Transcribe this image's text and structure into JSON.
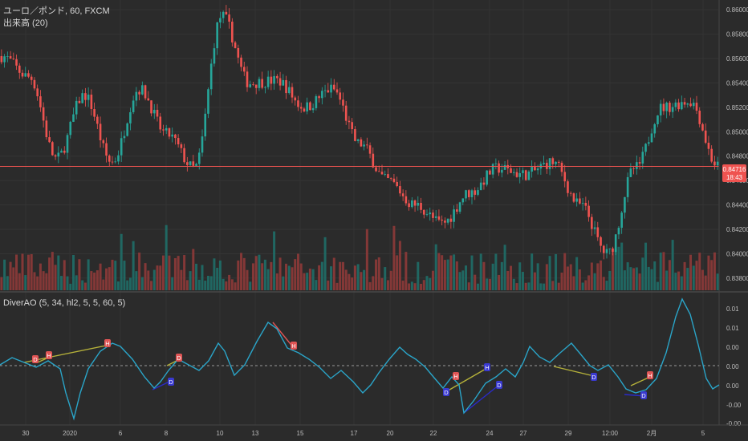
{
  "main_pane": {
    "symbol_line": "ユーロ／ポンド, 60, FXCM",
    "volume_line": "出来高 (20)",
    "price_labels": [
      "0.86000",
      "0.85800",
      "0.85600",
      "0.85400",
      "0.85200",
      "0.85000",
      "0.84800",
      "0.84600",
      "0.84400",
      "0.84200",
      "0.84000",
      "0.83800"
    ],
    "current_price": "0.84716",
    "countdown": "18:43",
    "ylim": [
      0.837,
      0.8608
    ],
    "colors": {
      "bg": "#2b2b2b",
      "up": "#26a69a",
      "down": "#ef5350",
      "price_line": "#ef5350",
      "volume_up": "#1f6e68",
      "volume_down": "#8e3a38"
    }
  },
  "indicator_pane": {
    "title": "DiverAO (5, 34, hl2, 5, 5, 60, 5)",
    "axis_labels": [
      "0.01",
      "0.01",
      "0.00",
      "0.00",
      "0.00",
      "-0.00",
      "-0.00",
      "-0.01"
    ],
    "zero_line_color": "#9a9a9a",
    "oscillator_color": "#2aa5c9",
    "markers": [
      {
        "label": "D",
        "kind": "bear"
      },
      {
        "label": "H",
        "kind": "bear"
      },
      {
        "label": "H",
        "kind": "bear"
      },
      {
        "label": "D",
        "kind": "bull"
      },
      {
        "label": "D",
        "kind": "bear"
      },
      {
        "label": "H",
        "kind": "bear"
      },
      {
        "label": "D",
        "kind": "bull"
      },
      {
        "label": "H",
        "kind": "bear"
      },
      {
        "label": "D",
        "kind": "bull"
      },
      {
        "label": "H",
        "kind": "bull"
      },
      {
        "label": "D",
        "kind": "bull"
      },
      {
        "label": "H",
        "kind": "bear"
      }
    ]
  },
  "time_axis": [
    "30",
    "2020",
    "6",
    "8",
    "10",
    "13",
    "15",
    "17",
    "20",
    "22",
    "24",
    "27",
    "29",
    "12:00",
    "2月",
    "5"
  ],
  "chart_data": {
    "type": "candlestick",
    "title": "ユーロ／ポンド, 60, FXCM",
    "ylabel": "",
    "ylim": [
      0.837,
      0.8608
    ],
    "key_closes": [
      0.8562,
      0.8545,
      0.8478,
      0.853,
      0.8475,
      0.8535,
      0.8498,
      0.847,
      0.8595,
      0.854,
      0.8542,
      0.852,
      0.8535,
      0.849,
      0.846,
      0.844,
      0.8425,
      0.845,
      0.847,
      0.8465,
      0.8475,
      0.844,
      0.84,
      0.847,
      0.852,
      0.8525,
      0.8472
    ],
    "current_price": 0.84716
  }
}
